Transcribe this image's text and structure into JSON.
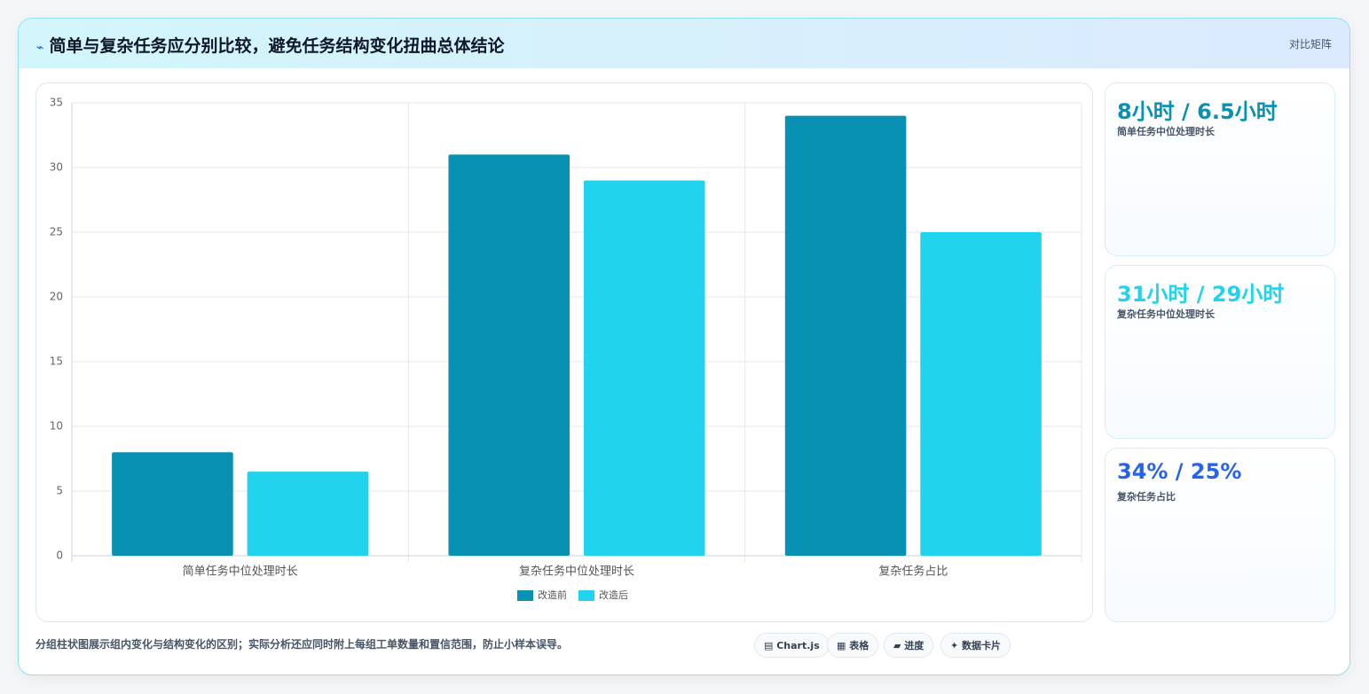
{
  "header": {
    "title": "简单与复杂任务应分别比较，避免任务结构变化扭曲总体结论",
    "badge": "对比矩阵"
  },
  "chart_data": {
    "type": "bar",
    "categories": [
      "简单任务中位处理时长",
      "复杂任务中位处理时长",
      "复杂任务占比"
    ],
    "series": [
      {
        "name": "改造前",
        "color": "#0891b2",
        "values": [
          8,
          31,
          34
        ]
      },
      {
        "name": "改造后",
        "color": "#22d3ee",
        "values": [
          6.5,
          29,
          25
        ]
      }
    ],
    "ylim": [
      0,
      35
    ],
    "yticks": [
      0,
      5,
      10,
      15,
      20,
      25,
      30,
      35
    ],
    "grid": true,
    "legend": "bottom"
  },
  "cards": [
    {
      "value": "8小时 / 6.5小时",
      "label": "简单任务中位处理时长",
      "color": "#0891b2"
    },
    {
      "value": "31小时 / 29小时",
      "label": "复杂任务中位处理时长",
      "color": "#22d3ee"
    },
    {
      "value": "34% / 25%",
      "label": "复杂任务占比",
      "color": "#2563eb"
    }
  ],
  "footer": {
    "note": "分组柱状图展示组内变化与结构变化的区别；实际分析还应同时附上每组工单数量和置信范围，防止小样本误导。",
    "chips": [
      "Chart.js",
      "表格",
      "进度",
      "数据卡片"
    ]
  }
}
